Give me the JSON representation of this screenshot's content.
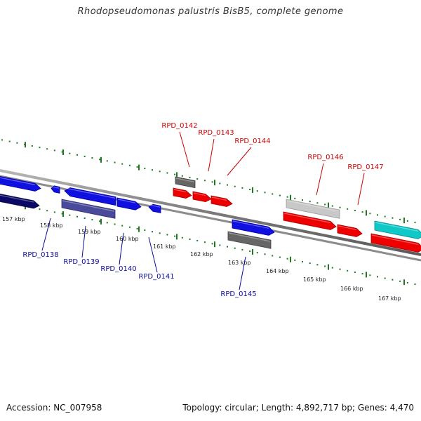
{
  "title": "Rhodopseudomonas palustris BisB5, complete genome",
  "footer": {
    "accession": "Accession: NC_007958",
    "summary": "Topology: circular; Length: 4,892,717 bp; Genes: 4,470"
  },
  "colors": {
    "backbone": "#8a8a8a",
    "dots": "#1e7a1e",
    "top_label": "#cc0000",
    "bottom_label": "#0a0a9a",
    "blue": "#1010e0",
    "navy": "#0a0a66",
    "slate": "#4a4a9a",
    "red": "#ee0000",
    "gray": "#666666",
    "lightgray": "#c8c8c8",
    "cyan": "#10c8c8"
  },
  "scale": {
    "unit": "kbp",
    "ticks": [
      "157 kbp",
      "158 kbp",
      "159 kbp",
      "160 kbp",
      "161 kbp",
      "162 kbp",
      "163 kbp",
      "164 kbp",
      "165 kbp",
      "166 kbp",
      "167 kbp"
    ]
  },
  "top_labels": [
    "RPD_0142",
    "RPD_0143",
    "RPD_0144",
    "RPD_0146",
    "RPD_0147"
  ],
  "bottom_labels": [
    "RPD_0138",
    "RPD_0139",
    "RPD_0140",
    "RPD_0141",
    "RPD_0145"
  ],
  "genes": [
    {
      "color": "blue",
      "direction": "right"
    },
    {
      "color": "navy",
      "direction": "right"
    },
    {
      "color": "blue",
      "direction": "left"
    },
    {
      "color": "blue",
      "direction": "left"
    },
    {
      "color": "slate",
      "direction": "none"
    },
    {
      "color": "blue",
      "direction": "right"
    },
    {
      "color": "blue",
      "direction": "left"
    },
    {
      "color": "gray",
      "direction": "none"
    },
    {
      "color": "red",
      "direction": "right"
    },
    {
      "color": "red",
      "direction": "right"
    },
    {
      "color": "red",
      "direction": "right"
    },
    {
      "color": "blue",
      "direction": "right"
    },
    {
      "color": "gray",
      "direction": "none"
    },
    {
      "color": "lightgray",
      "direction": "none"
    },
    {
      "color": "red",
      "direction": "right"
    },
    {
      "color": "red",
      "direction": "right"
    },
    {
      "color": "cyan",
      "direction": "right"
    },
    {
      "color": "red",
      "direction": "right"
    }
  ]
}
